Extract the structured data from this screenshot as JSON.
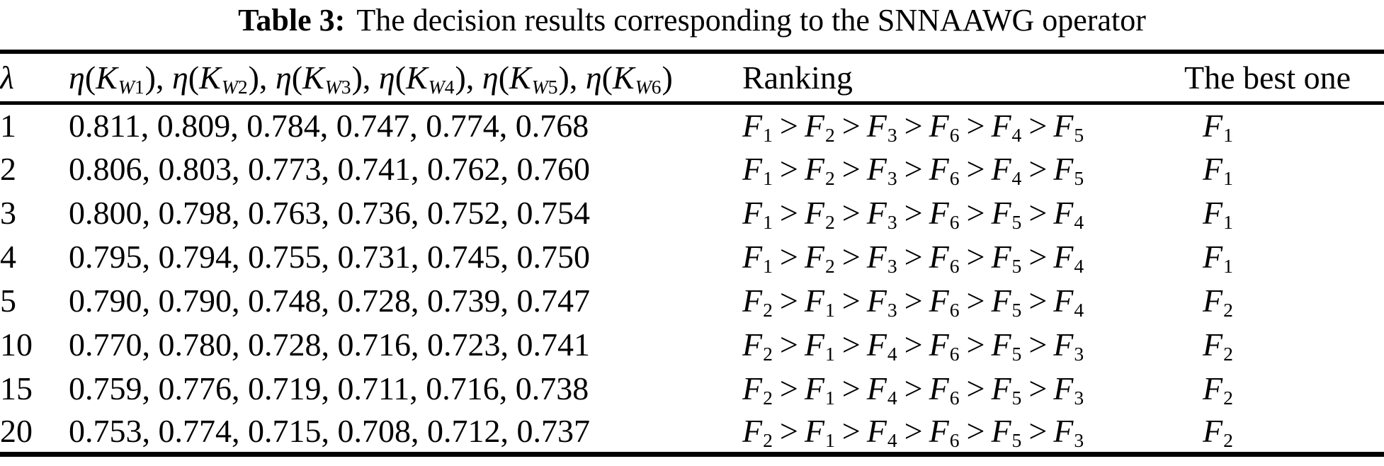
{
  "title": {
    "label": "Table 3:",
    "text": "The decision results corresponding to the SNNAAWG operator"
  },
  "header": {
    "lambda": "λ",
    "eta": {
      "func": "η",
      "open": "(",
      "var": "K",
      "close": ")",
      "sep": ", ",
      "subs": [
        "W1",
        "W2",
        "W3",
        "W4",
        "W5",
        "W6"
      ]
    },
    "ranking": "Ranking",
    "best": "The best one"
  },
  "symbols": {
    "alt": "F",
    "gt": ">"
  },
  "rows": [
    {
      "lambda": "1",
      "values": "0.811, 0.809, 0.784, 0.747, 0.774, 0.768",
      "ranking": [
        "1",
        "2",
        "3",
        "6",
        "4",
        "5"
      ],
      "best": "1"
    },
    {
      "lambda": "2",
      "values": "0.806, 0.803, 0.773, 0.741, 0.762, 0.760",
      "ranking": [
        "1",
        "2",
        "3",
        "6",
        "4",
        "5"
      ],
      "best": "1"
    },
    {
      "lambda": "3",
      "values": "0.800, 0.798, 0.763, 0.736, 0.752, 0.754",
      "ranking": [
        "1",
        "2",
        "3",
        "6",
        "5",
        "4"
      ],
      "best": "1"
    },
    {
      "lambda": "4",
      "values": "0.795, 0.794, 0.755, 0.731, 0.745, 0.750",
      "ranking": [
        "1",
        "2",
        "3",
        "6",
        "5",
        "4"
      ],
      "best": "1"
    },
    {
      "lambda": "5",
      "values": "0.790, 0.790, 0.748, 0.728, 0.739, 0.747",
      "ranking": [
        "2",
        "1",
        "3",
        "6",
        "5",
        "4"
      ],
      "best": "2"
    },
    {
      "lambda": "10",
      "values": "0.770, 0.780, 0.728, 0.716, 0.723, 0.741",
      "ranking": [
        "2",
        "1",
        "4",
        "6",
        "5",
        "3"
      ],
      "best": "2"
    },
    {
      "lambda": "15",
      "values": "0.759, 0.776, 0.719, 0.711, 0.716, 0.738",
      "ranking": [
        "2",
        "1",
        "4",
        "6",
        "5",
        "3"
      ],
      "best": "2"
    },
    {
      "lambda": "20",
      "values": "0.753, 0.774, 0.715, 0.708, 0.712, 0.737",
      "ranking": [
        "2",
        "1",
        "4",
        "6",
        "5",
        "3"
      ],
      "best": "2"
    }
  ]
}
